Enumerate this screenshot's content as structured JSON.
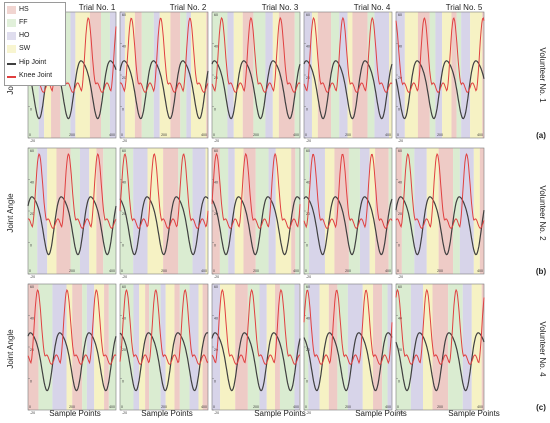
{
  "legend": {
    "items": [
      {
        "label": "HS",
        "color": "#e8b9b3",
        "kind": "patch"
      },
      {
        "label": "FF",
        "color": "#cde6c2",
        "kind": "patch"
      },
      {
        "label": "HO",
        "color": "#c9c6e2",
        "kind": "patch"
      },
      {
        "label": "SW",
        "color": "#f3eeb0",
        "kind": "patch"
      },
      {
        "label": "Hip Joint",
        "color": "#404040",
        "kind": "line"
      },
      {
        "label": "Knee Joint",
        "color": "#e04040",
        "kind": "line"
      }
    ]
  },
  "columns": [
    "Trial No. 1",
    "Trial No. 2",
    "Trial No. 3",
    "Trial No. 4",
    "Trial No. 5"
  ],
  "rows": [
    {
      "volunteer": "Volunteer No. 1",
      "panel_label": "(a)"
    },
    {
      "volunteer": "Volunteer No. 2",
      "panel_label": "(b)"
    },
    {
      "volunteer": "Volunteer No. 4",
      "panel_label": "(c)"
    }
  ],
  "ylabel": "Joint Angle",
  "xlabel": "Sample Points",
  "colors": {
    "HS": "#e8b9b3",
    "FF": "#cde6c2",
    "HO": "#c9c6e2",
    "SW": "#f3eeb0",
    "hip": "#404040",
    "knee": "#e04040",
    "axis": "#7a7a7a"
  },
  "chart_data": {
    "type": "line",
    "title": "",
    "grid": false,
    "layout": "3 rows x 5 columns of subplots",
    "phase_sequence": [
      "HS",
      "FF",
      "HO",
      "SW"
    ],
    "y_ticks": {
      "volunteer_1": [
        "-20",
        "0",
        "20",
        "40",
        "60"
      ],
      "volunteer_2": [
        "-20",
        "0",
        "20",
        "40",
        "60"
      ],
      "volunteer_4": [
        "-20",
        "0",
        "20",
        "40",
        "60"
      ]
    },
    "ylim": [
      -20,
      60
    ],
    "xlim": [
      0,
      400
    ],
    "x_tick_labels": [
      "0",
      "200",
      "400"
    ],
    "series": [
      {
        "name": "Hip Joint",
        "cycles_per_panel": 3,
        "min": -5,
        "max": 32
      },
      {
        "name": "Knee Joint",
        "cycles_per_panel": 3,
        "min": 0,
        "max": 58
      }
    ],
    "panels": [
      {
        "row": 1,
        "col": 1
      },
      {
        "row": 1,
        "col": 2
      },
      {
        "row": 1,
        "col": 3
      },
      {
        "row": 1,
        "col": 4
      },
      {
        "row": 1,
        "col": 5
      },
      {
        "row": 2,
        "col": 1
      },
      {
        "row": 2,
        "col": 2
      },
      {
        "row": 2,
        "col": 3
      },
      {
        "row": 2,
        "col": 4
      },
      {
        "row": 2,
        "col": 5
      },
      {
        "row": 3,
        "col": 1
      },
      {
        "row": 3,
        "col": 2
      },
      {
        "row": 3,
        "col": 3
      },
      {
        "row": 3,
        "col": 4
      },
      {
        "row": 3,
        "col": 5
      }
    ]
  }
}
